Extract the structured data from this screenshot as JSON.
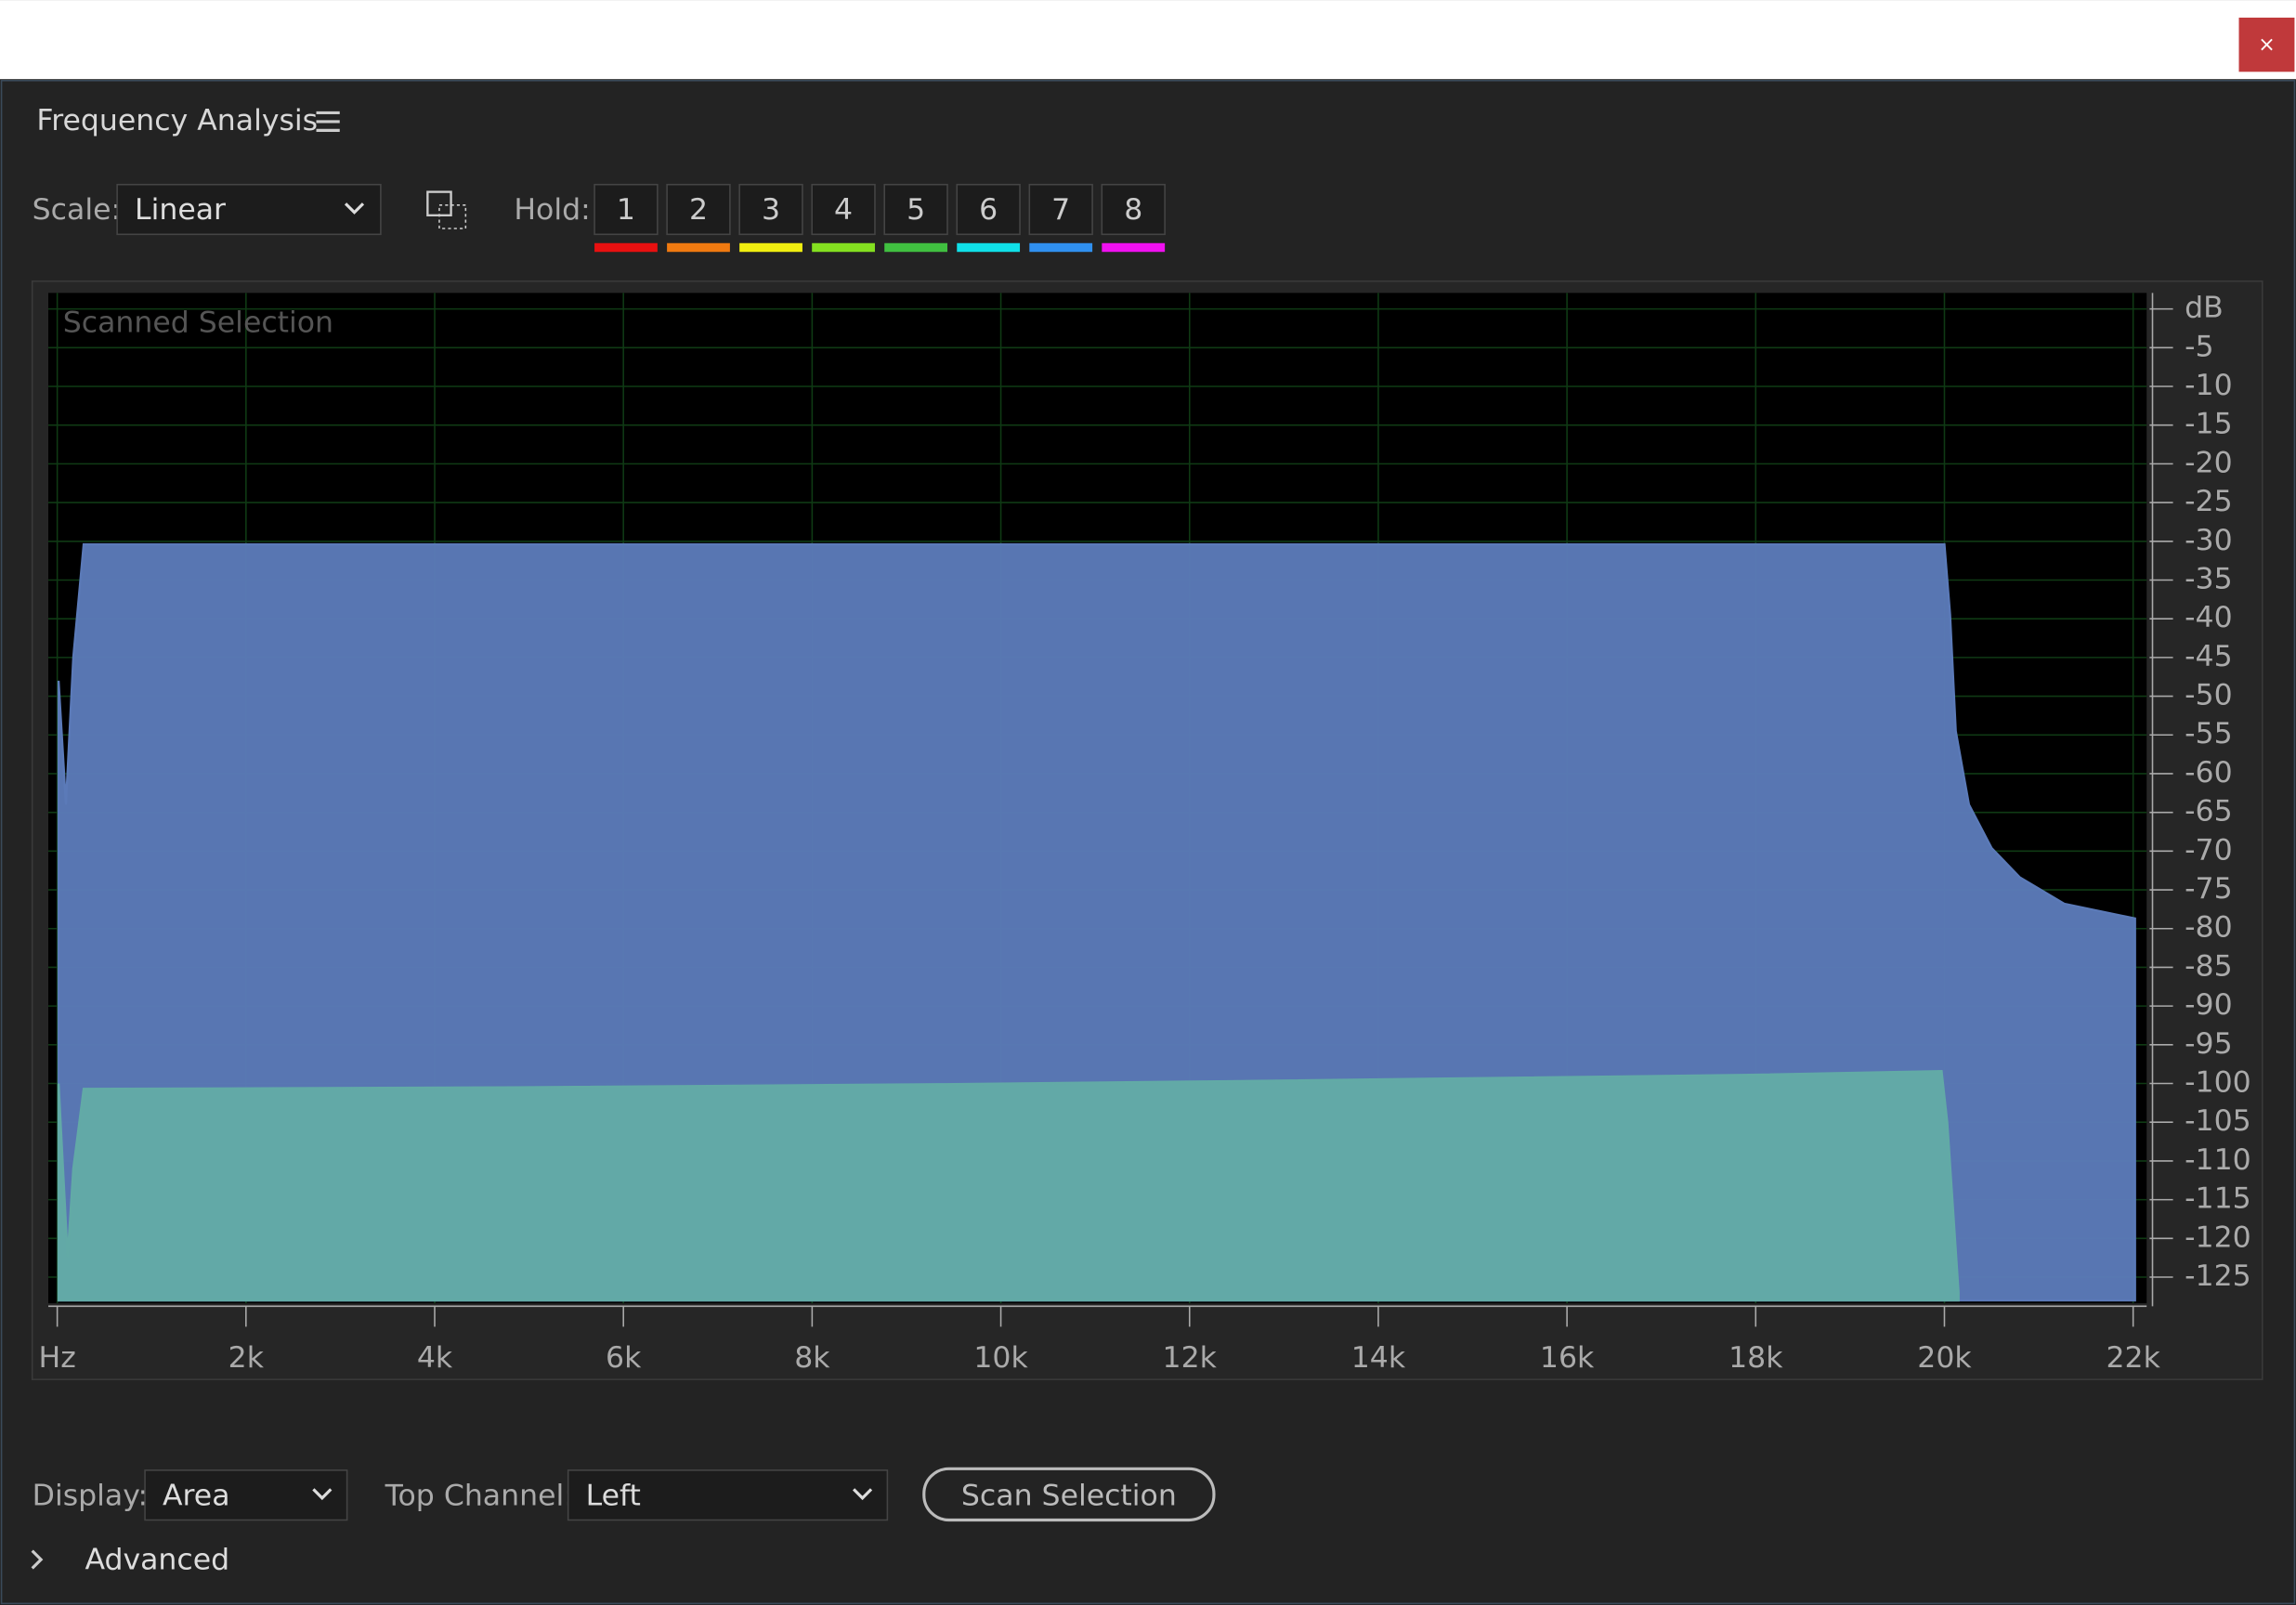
{
  "window": {
    "close": "×"
  },
  "panel": {
    "title": "Frequency Analysis"
  },
  "controls": {
    "scale_label": "Scale:",
    "scale_value": "Linear",
    "hold_label": "Hold:",
    "hold": [
      {
        "label": "1",
        "color": "#e81010"
      },
      {
        "label": "2",
        "color": "#f07a10"
      },
      {
        "label": "3",
        "color": "#f0ee10"
      },
      {
        "label": "4",
        "color": "#84e020"
      },
      {
        "label": "5",
        "color": "#40c040"
      },
      {
        "label": "6",
        "color": "#10e0e8"
      },
      {
        "label": "7",
        "color": "#3090f0"
      },
      {
        "label": "8",
        "color": "#f010f0"
      }
    ],
    "display_label": "Display:",
    "display_value": "Area",
    "channel_label": "Top Channel:",
    "channel_value": "Left",
    "scan_button": "Scan Selection",
    "advanced": "Advanced"
  },
  "chart_data": {
    "type": "area",
    "annotation": "Scanned Selection",
    "xlim": [
      0,
      22050
    ],
    "xticks": [
      {
        "value": 0,
        "label": "Hz"
      },
      {
        "value": 2000,
        "label": "2k"
      },
      {
        "value": 4000,
        "label": "4k"
      },
      {
        "value": 6000,
        "label": "6k"
      },
      {
        "value": 8000,
        "label": "8k"
      },
      {
        "value": 10000,
        "label": "10k"
      },
      {
        "value": 12000,
        "label": "12k"
      },
      {
        "value": 14000,
        "label": "14k"
      },
      {
        "value": 16000,
        "label": "16k"
      },
      {
        "value": 18000,
        "label": "18k"
      },
      {
        "value": 20000,
        "label": "20k"
      },
      {
        "value": 22000,
        "label": "22k"
      }
    ],
    "ylim": [
      -128,
      1.5
    ],
    "yticks": [
      {
        "value": 0,
        "label": "dB"
      },
      -5,
      -10,
      -15,
      -20,
      -25,
      -30,
      -35,
      -40,
      -45,
      -50,
      -55,
      -60,
      -65,
      -70,
      -75,
      -80,
      -85,
      -90,
      -95,
      -100,
      -105,
      -110,
      -115,
      -120,
      -125
    ],
    "grid": true,
    "series": [
      {
        "color": "#5b7ab8",
        "x": [
          14,
          92,
          170,
          280,
          20000,
          20060,
          20120,
          20260,
          20500,
          20800,
          21270,
          22020
        ],
        "values": [
          -48,
          -64,
          -45,
          -30.4,
          -30.4,
          -39.5,
          -54.5,
          -64,
          -69.6,
          -73.4,
          -76.8,
          -78.7
        ]
      },
      {
        "color": "#62aaa6",
        "x": [
          14,
          110,
          170,
          280,
          4830,
          9325,
          12430,
          15150,
          17860,
          19970,
          20030,
          20150
        ],
        "values": [
          -100,
          -122.4,
          -111,
          -100.7,
          -100.5,
          -100.1,
          -99.7,
          -99.3,
          -98.9,
          -98.4,
          -105,
          -127
        ]
      }
    ]
  }
}
